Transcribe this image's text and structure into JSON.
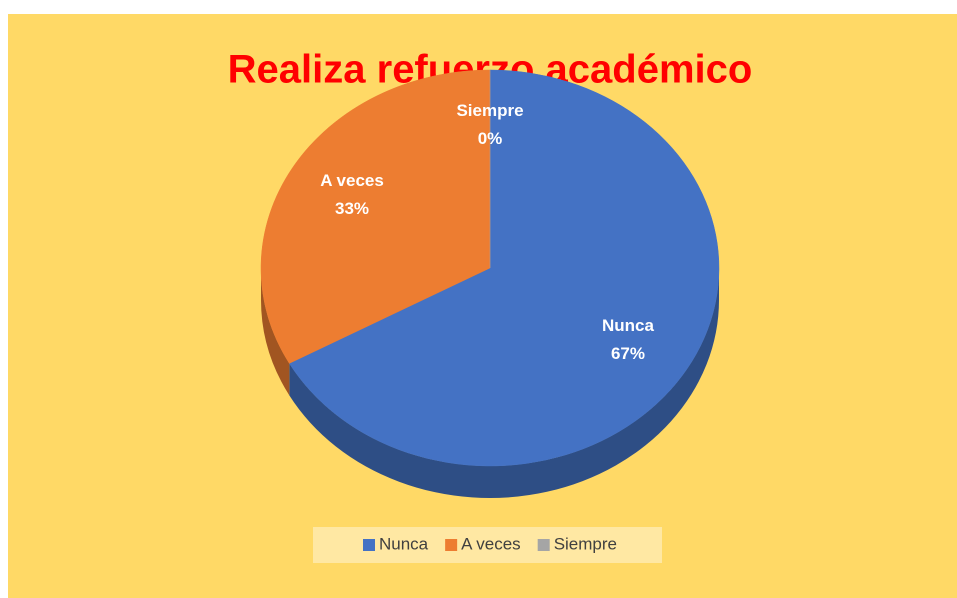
{
  "chart_data": {
    "type": "pie",
    "title": "Realiza refuerzo académico",
    "categories": [
      "Nunca",
      "A veces",
      "Siempre"
    ],
    "values": [
      67,
      33,
      0
    ],
    "value_labels": [
      "67%",
      "33%",
      "0%"
    ],
    "colors": [
      "#4472c4",
      "#ed7d31",
      "#a5a5a5"
    ],
    "legend": "bottom"
  }
}
